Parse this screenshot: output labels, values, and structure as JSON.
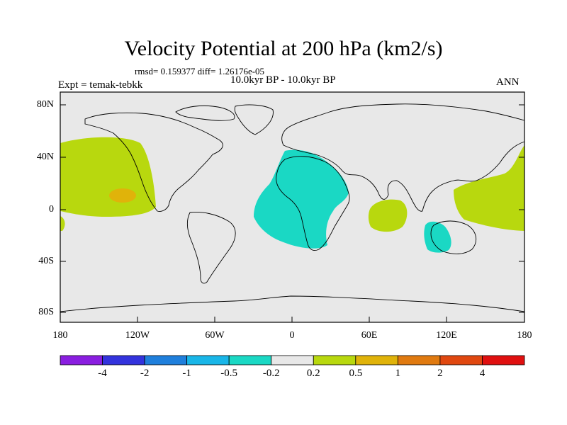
{
  "title": "Velocity Potential at 200 hPa (km2/s)",
  "stats_line": "rmsd= 0.159377 diff= 1.26176e-05",
  "period": "10.0kyr BP - 10.0kyr BP",
  "experiment": "Expt = temak-tebkk",
  "season": "ANN",
  "lat_ticks": [
    "80N",
    "40N",
    "0",
    "40S",
    "80S"
  ],
  "lon_ticks": [
    "180",
    "120W",
    "60W",
    "0",
    "60E",
    "120E",
    "180"
  ],
  "colorbar": {
    "labels": [
      "-4",
      "-2",
      "-1",
      "-0.5",
      "-0.2",
      "0.2",
      "0.5",
      "1",
      "2",
      "4"
    ],
    "colors": [
      "#8a1ee0",
      "#3333dd",
      "#1f7fdc",
      "#19b6e8",
      "#1ad8c4",
      "#e8e8e8",
      "#b8d80e",
      "#e0b30a",
      "#e07a10",
      "#e04810",
      "#e01010"
    ]
  },
  "regions": [
    {
      "name": "east-pacific-positive",
      "level": "0.2 to 0.5",
      "color": "#b8d80e"
    },
    {
      "name": "east-pacific-core",
      "level": "0.5 to 1",
      "color": "#e0b30a"
    },
    {
      "name": "atlantic-africa-negative",
      "level": "-0.5 to -0.2",
      "color": "#1ad8c4"
    },
    {
      "name": "indian-ocean-positive",
      "level": "0.2 to 0.5",
      "color": "#b8d80e"
    },
    {
      "name": "australia-negative",
      "level": "-0.5 to -0.2",
      "color": "#1ad8c4"
    },
    {
      "name": "west-pacific-positive",
      "level": "0.2 to 0.5",
      "color": "#b8d80e"
    }
  ],
  "background_color": "#e8e8e8"
}
